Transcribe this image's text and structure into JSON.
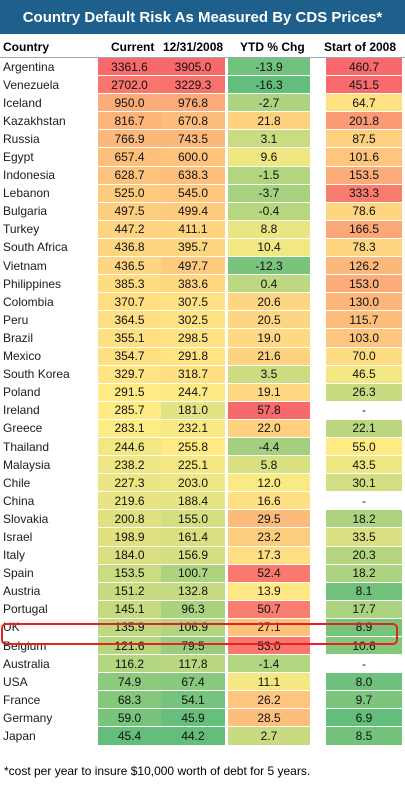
{
  "chart_data": {
    "type": "table",
    "title": "Country Default Risk As Measured By CDS Prices*",
    "columns": [
      "Country",
      "Current",
      "12/31/2008",
      "YTD % Chg",
      "Start of 2008"
    ],
    "rows": [
      [
        "Argentina",
        "3361.6",
        "3905.0",
        "-13.9",
        "460.7"
      ],
      [
        "Venezuela",
        "2702.0",
        "3229.3",
        "-16.3",
        "451.5"
      ],
      [
        "Iceland",
        "950.0",
        "976.8",
        "-2.7",
        "64.7"
      ],
      [
        "Kazakhstan",
        "816.7",
        "670.8",
        "21.8",
        "201.8"
      ],
      [
        "Russia",
        "766.9",
        "743.5",
        "3.1",
        "87.5"
      ],
      [
        "Egypt",
        "657.4",
        "600.0",
        "9.6",
        "101.6"
      ],
      [
        "Indonesia",
        "628.7",
        "638.3",
        "-1.5",
        "153.5"
      ],
      [
        "Lebanon",
        "525.0",
        "545.0",
        "-3.7",
        "333.3"
      ],
      [
        "Bulgaria",
        "497.5",
        "499.4",
        "-0.4",
        "78.6"
      ],
      [
        "Turkey",
        "447.2",
        "411.1",
        "8.8",
        "166.5"
      ],
      [
        "South Africa",
        "436.8",
        "395.7",
        "10.4",
        "78.3"
      ],
      [
        "Vietnam",
        "436.5",
        "497.7",
        "-12.3",
        "126.2"
      ],
      [
        "Philippines",
        "385.3",
        "383.6",
        "0.4",
        "153.0"
      ],
      [
        "Colombia",
        "370.7",
        "307.5",
        "20.6",
        "130.0"
      ],
      [
        "Peru",
        "364.5",
        "302.5",
        "20.5",
        "115.7"
      ],
      [
        "Brazil",
        "355.1",
        "298.5",
        "19.0",
        "103.0"
      ],
      [
        "Mexico",
        "354.7",
        "291.8",
        "21.6",
        "70.0"
      ],
      [
        "South Korea",
        "329.7",
        "318.7",
        "3.5",
        "46.5"
      ],
      [
        "Poland",
        "291.5",
        "244.7",
        "19.1",
        "26.3"
      ],
      [
        "Ireland",
        "285.7",
        "181.0",
        "57.8",
        "-"
      ],
      [
        "Greece",
        "283.1",
        "232.1",
        "22.0",
        "22.1"
      ],
      [
        "Thailand",
        "244.6",
        "255.8",
        "-4.4",
        "55.0"
      ],
      [
        "Malaysia",
        "238.2",
        "225.1",
        "5.8",
        "43.5"
      ],
      [
        "Chile",
        "227.3",
        "203.0",
        "12.0",
        "30.1"
      ],
      [
        "China",
        "219.6",
        "188.4",
        "16.6",
        "-"
      ],
      [
        "Slovakia",
        "200.8",
        "155.0",
        "29.5",
        "18.2"
      ],
      [
        "Israel",
        "198.9",
        "161.4",
        "23.2",
        "33.5"
      ],
      [
        "Italy",
        "184.0",
        "156.9",
        "17.3",
        "20.3"
      ],
      [
        "Spain",
        "153.5",
        "100.7",
        "52.4",
        "18.2"
      ],
      [
        "Austria",
        "151.2",
        "132.8",
        "13.9",
        "8.1"
      ],
      [
        "Portugal",
        "145.1",
        "96.3",
        "50.7",
        "17.7"
      ],
      [
        "UK",
        "135.9",
        "106.9",
        "27.1",
        "8.9"
      ],
      [
        "Belgium",
        "121.6",
        "79.5",
        "53.0",
        "10.6"
      ],
      [
        "Australia",
        "116.2",
        "117.8",
        "-1.4",
        "-"
      ],
      [
        "USA",
        "74.9",
        "67.4",
        "11.1",
        "8.0"
      ],
      [
        "France",
        "68.3",
        "54.1",
        "26.2",
        "9.7"
      ],
      [
        "Germany",
        "59.0",
        "45.9",
        "28.5",
        "6.9"
      ],
      [
        "Japan",
        "45.4",
        "44.2",
        "2.7",
        "8.5"
      ]
    ],
    "highlighted_row": "UK",
    "footnote": "*cost per year to insure $10,000 worth of debt for 5 years.",
    "colors": {
      "title_background": "#1f5f8b",
      "title_text": "#ffffff",
      "scale_high": "#f8696b",
      "scale_mid": "#ffeb84",
      "scale_low": "#63be7b",
      "highlight_outline": "#e52222"
    }
  }
}
